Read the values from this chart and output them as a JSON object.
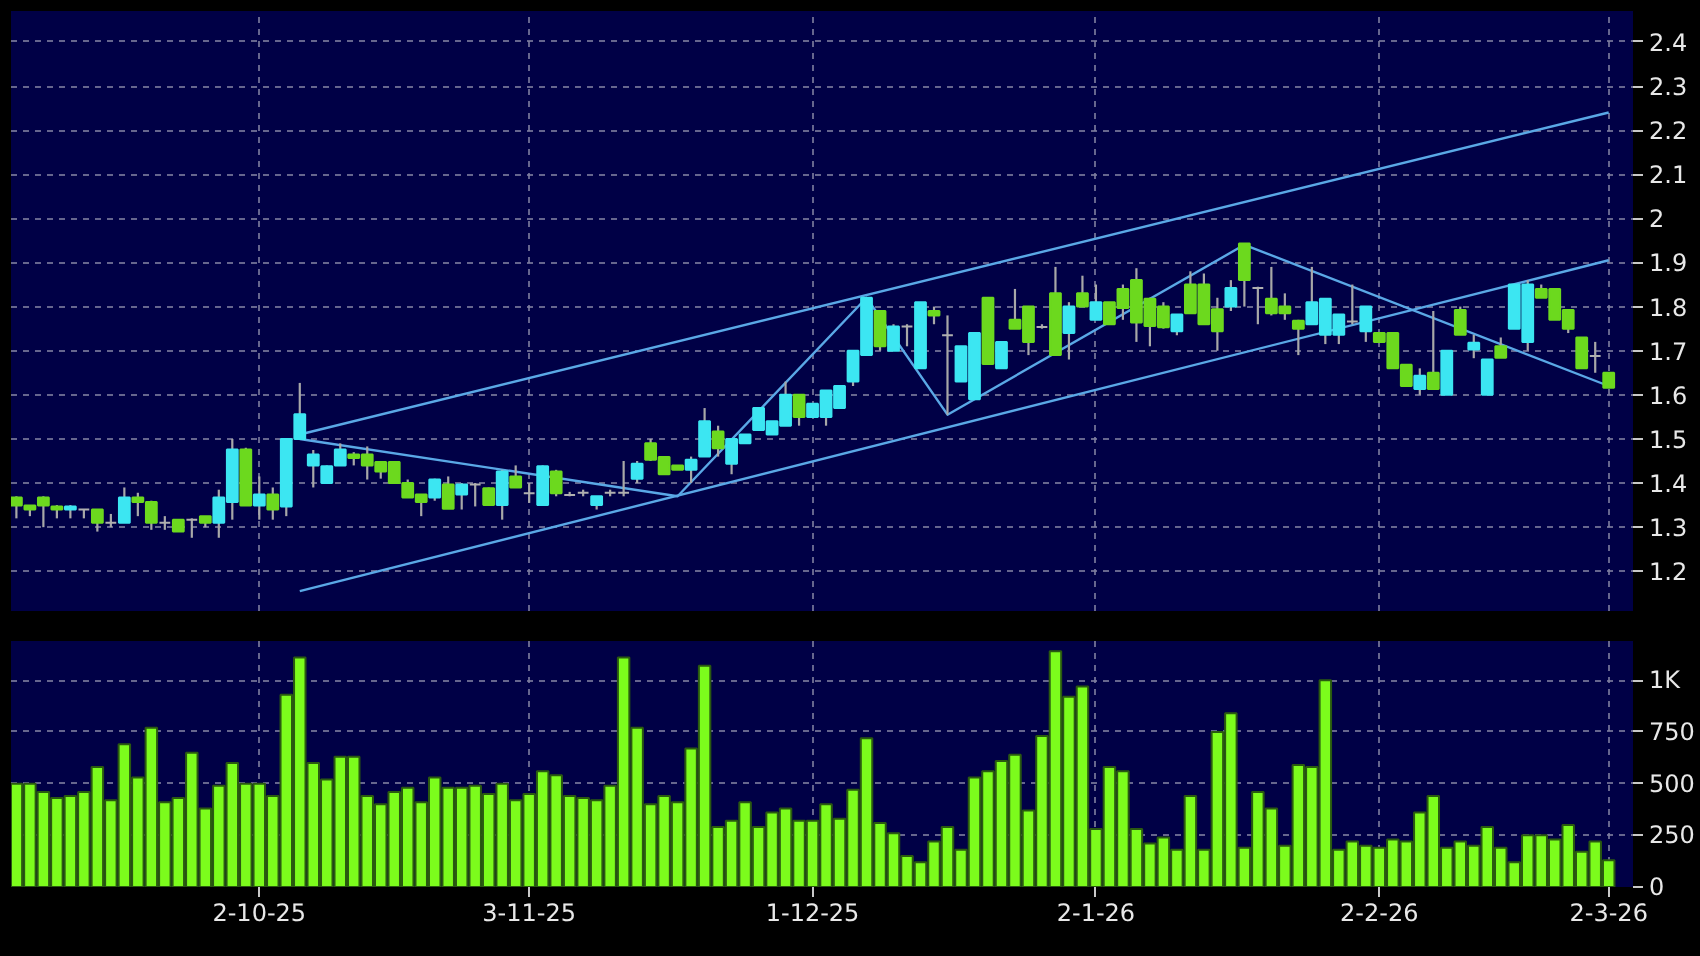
{
  "chart_data": [
    {
      "type": "candlestick",
      "tick_labels": "y",
      "grid": true,
      "ylim": [
        1.11,
        2.47
      ],
      "yticks": [
        1.2,
        1.3,
        1.4,
        1.5,
        1.6,
        1.7,
        1.8,
        1.9,
        2,
        2.1,
        2.2,
        2.3,
        2.4
      ],
      "categories": [
        null,
        null,
        null,
        null,
        null,
        null,
        null,
        null,
        null,
        null,
        null,
        null,
        null,
        null,
        null,
        null,
        null,
        null,
        null,
        null,
        null,
        null,
        null,
        null,
        null,
        null,
        null,
        null,
        null,
        null,
        null,
        null,
        null,
        null,
        null,
        null,
        null,
        null,
        null,
        null,
        null,
        null,
        null,
        null,
        null,
        null,
        null,
        null,
        null,
        null,
        null,
        null,
        null,
        null,
        null,
        null,
        null,
        null,
        null,
        null,
        null,
        null,
        null,
        null,
        null,
        null,
        null,
        null,
        null,
        null,
        null,
        null,
        null,
        null,
        null,
        null,
        null,
        null,
        null,
        null,
        null,
        null,
        null,
        null,
        null,
        null,
        null,
        null,
        null,
        null,
        null,
        null,
        null,
        null,
        null,
        null,
        null,
        null,
        null,
        null,
        null,
        null,
        null,
        null,
        null,
        null,
        null,
        null,
        null,
        null,
        null,
        null,
        null,
        null,
        null,
        null,
        null,
        null,
        null
      ],
      "ohlc": [
        [
          1.367,
          1.37,
          1.32,
          1.349
        ],
        [
          1.349,
          1.35,
          1.325,
          1.34
        ],
        [
          1.367,
          1.37,
          1.3,
          1.349
        ],
        [
          1.347,
          1.35,
          1.32,
          1.34
        ],
        [
          1.34,
          1.35,
          1.32,
          1.347
        ],
        [
          1.34,
          1.34,
          1.32,
          1.34
        ],
        [
          1.34,
          1.34,
          1.29,
          1.31
        ],
        [
          1.31,
          1.33,
          1.3,
          1.31
        ],
        [
          1.31,
          1.39,
          1.31,
          1.367
        ],
        [
          1.367,
          1.378,
          1.325,
          1.357
        ],
        [
          1.357,
          1.36,
          1.294,
          1.31
        ],
        [
          1.31,
          1.325,
          1.294,
          1.31
        ],
        [
          1.317,
          1.317,
          1.29,
          1.29
        ],
        [
          1.317,
          1.32,
          1.276,
          1.317
        ],
        [
          1.325,
          1.325,
          1.3,
          1.31
        ],
        [
          1.31,
          1.385,
          1.276,
          1.367
        ],
        [
          1.357,
          1.5,
          1.317,
          1.476
        ],
        [
          1.476,
          1.48,
          1.349,
          1.349
        ],
        [
          1.349,
          1.415,
          1.317,
          1.374
        ],
        [
          1.374,
          1.39,
          1.317,
          1.34
        ],
        [
          1.347,
          1.5,
          1.325,
          1.5
        ],
        [
          1.5,
          1.627,
          1.5,
          1.556
        ],
        [
          1.44,
          1.475,
          1.39,
          1.465
        ],
        [
          1.4,
          1.44,
          1.4,
          1.438
        ],
        [
          1.44,
          1.49,
          1.44,
          1.476
        ],
        [
          1.465,
          1.47,
          1.44,
          1.457
        ],
        [
          1.465,
          1.483,
          1.408,
          1.44
        ],
        [
          1.448,
          1.45,
          1.41,
          1.426
        ],
        [
          1.448,
          1.45,
          1.4,
          1.4
        ],
        [
          1.4,
          1.408,
          1.367,
          1.367
        ],
        [
          1.374,
          1.374,
          1.325,
          1.357
        ],
        [
          1.367,
          1.41,
          1.36,
          1.408
        ],
        [
          1.397,
          1.415,
          1.342,
          1.342
        ],
        [
          1.374,
          1.4,
          1.34,
          1.397
        ],
        [
          1.397,
          1.4,
          1.347,
          1.397
        ],
        [
          1.388,
          1.39,
          1.35,
          1.35
        ],
        [
          1.35,
          1.43,
          1.317,
          1.426
        ],
        [
          1.415,
          1.44,
          1.39,
          1.39
        ],
        [
          1.377,
          1.4,
          1.355,
          1.377
        ],
        [
          1.35,
          1.44,
          1.35,
          1.438
        ],
        [
          1.426,
          1.43,
          1.37,
          1.377
        ],
        [
          1.373,
          1.38,
          1.37,
          1.373
        ],
        [
          1.378,
          1.385,
          1.37,
          1.378
        ],
        [
          1.35,
          1.37,
          1.34,
          1.37
        ],
        [
          1.378,
          1.385,
          1.37,
          1.378
        ],
        [
          1.378,
          1.45,
          1.37,
          1.378
        ],
        [
          1.41,
          1.45,
          1.4,
          1.444
        ],
        [
          1.49,
          1.5,
          1.45,
          1.453
        ],
        [
          1.459,
          1.46,
          1.42,
          1.42
        ],
        [
          1.44,
          1.44,
          1.43,
          1.43
        ],
        [
          1.43,
          1.46,
          1.4,
          1.453
        ],
        [
          1.46,
          1.57,
          1.46,
          1.54
        ],
        [
          1.517,
          1.53,
          1.46,
          1.479
        ],
        [
          1.444,
          1.5,
          1.42,
          1.5
        ],
        [
          1.49,
          1.51,
          1.49,
          1.51
        ],
        [
          1.52,
          1.57,
          1.52,
          1.57
        ],
        [
          1.51,
          1.54,
          1.51,
          1.54
        ],
        [
          1.53,
          1.63,
          1.53,
          1.6
        ],
        [
          1.6,
          1.6,
          1.53,
          1.55
        ],
        [
          1.55,
          1.58,
          1.55,
          1.58
        ],
        [
          1.55,
          1.61,
          1.53,
          1.61
        ],
        [
          1.57,
          1.62,
          1.57,
          1.62
        ],
        [
          1.63,
          1.7,
          1.62,
          1.7
        ],
        [
          1.69,
          1.82,
          1.69,
          1.82
        ],
        [
          1.79,
          1.79,
          1.7,
          1.71
        ],
        [
          1.7,
          1.76,
          1.7,
          1.755
        ],
        [
          1.755,
          1.76,
          1.71,
          1.755
        ],
        [
          1.66,
          1.81,
          1.66,
          1.81
        ],
        [
          1.79,
          1.8,
          1.76,
          1.78
        ],
        [
          1.735,
          1.78,
          1.555,
          1.735
        ],
        [
          1.63,
          1.71,
          1.63,
          1.71
        ],
        [
          1.59,
          1.74,
          1.59,
          1.74
        ],
        [
          1.82,
          1.82,
          1.67,
          1.67
        ],
        [
          1.66,
          1.72,
          1.66,
          1.72
        ],
        [
          1.77,
          1.84,
          1.75,
          1.75
        ],
        [
          1.8,
          1.8,
          1.69,
          1.72
        ],
        [
          1.754,
          1.76,
          1.75,
          1.754
        ],
        [
          1.83,
          1.89,
          1.69,
          1.69
        ],
        [
          1.74,
          1.81,
          1.68,
          1.8
        ],
        [
          1.83,
          1.87,
          1.8,
          1.8
        ],
        [
          1.77,
          1.85,
          1.77,
          1.81
        ],
        [
          1.81,
          1.81,
          1.76,
          1.76
        ],
        [
          1.84,
          1.85,
          1.77,
          1.797
        ],
        [
          1.86,
          1.887,
          1.72,
          1.764
        ],
        [
          1.818,
          1.82,
          1.71,
          1.756
        ],
        [
          1.8,
          1.81,
          1.75,
          1.753
        ],
        [
          1.744,
          1.782,
          1.735,
          1.782
        ],
        [
          1.85,
          1.88,
          1.785,
          1.785
        ],
        [
          1.85,
          1.875,
          1.76,
          1.76
        ],
        [
          1.794,
          1.82,
          1.7,
          1.744
        ],
        [
          1.8,
          1.86,
          1.79,
          1.842
        ],
        [
          1.943,
          1.943,
          1.8,
          1.86
        ],
        [
          1.842,
          1.845,
          1.76,
          1.842
        ],
        [
          1.818,
          1.89,
          1.78,
          1.785
        ],
        [
          1.8,
          1.83,
          1.77,
          1.785
        ],
        [
          1.768,
          1.77,
          1.69,
          1.75
        ],
        [
          1.76,
          1.89,
          1.76,
          1.81
        ],
        [
          1.736,
          1.818,
          1.715,
          1.818
        ],
        [
          1.736,
          1.782,
          1.715,
          1.782
        ],
        [
          1.766,
          1.85,
          1.76,
          1.766
        ],
        [
          1.744,
          1.8,
          1.72,
          1.8
        ],
        [
          1.74,
          1.74,
          1.72,
          1.72
        ],
        [
          1.74,
          1.74,
          1.66,
          1.66
        ],
        [
          1.668,
          1.668,
          1.62,
          1.62
        ],
        [
          1.613,
          1.66,
          1.6,
          1.643
        ],
        [
          1.65,
          1.79,
          1.613,
          1.613
        ],
        [
          1.6,
          1.7,
          1.6,
          1.7
        ],
        [
          1.792,
          1.8,
          1.736,
          1.736
        ],
        [
          1.703,
          1.736,
          1.683,
          1.718
        ],
        [
          1.6,
          1.68,
          1.6,
          1.68
        ],
        [
          1.71,
          1.73,
          1.684,
          1.684
        ],
        [
          1.75,
          1.85,
          1.75,
          1.85
        ],
        [
          1.72,
          1.86,
          1.7,
          1.85
        ],
        [
          1.84,
          1.85,
          1.82,
          1.82
        ],
        [
          1.84,
          1.84,
          1.77,
          1.77
        ],
        [
          1.792,
          1.792,
          1.74,
          1.75
        ],
        [
          1.73,
          1.73,
          1.66,
          1.66
        ],
        [
          1.688,
          1.72,
          1.65,
          1.688
        ],
        [
          1.65,
          1.65,
          1.616,
          1.616
        ]
      ],
      "colors": [
        "#6cd91e",
        "#6cd91e",
        "#6cd91e",
        "#6cd91e",
        "#3ce6f2",
        "#b0b0b0",
        "#6cd91e",
        "#b0b0b0",
        "#3ce6f2",
        "#6cd91e",
        "#6cd91e",
        "#b0b0b0",
        "#6cd91e",
        "#b0b0b0",
        "#6cd91e",
        "#3ce6f2",
        "#3ce6f2",
        "#6cd91e",
        "#3ce6f2",
        "#6cd91e",
        "#3ce6f2",
        "#3ce6f2",
        "#3ce6f2",
        "#3ce6f2",
        "#3ce6f2",
        "#6cd91e",
        "#6cd91e",
        "#6cd91e",
        "#6cd91e",
        "#6cd91e",
        "#6cd91e",
        "#3ce6f2",
        "#6cd91e",
        "#3ce6f2",
        "#b0b0b0",
        "#6cd91e",
        "#3ce6f2",
        "#6cd91e",
        "#b0b0b0",
        "#3ce6f2",
        "#6cd91e",
        "#b0b0b0",
        "#b0b0b0",
        "#3ce6f2",
        "#b0b0b0",
        "#b0b0b0",
        "#3ce6f2",
        "#6cd91e",
        "#6cd91e",
        "#6cd91e",
        "#3ce6f2",
        "#3ce6f2",
        "#6cd91e",
        "#3ce6f2",
        "#3ce6f2",
        "#3ce6f2",
        "#3ce6f2",
        "#3ce6f2",
        "#6cd91e",
        "#3ce6f2",
        "#3ce6f2",
        "#3ce6f2",
        "#3ce6f2",
        "#3ce6f2",
        "#6cd91e",
        "#3ce6f2",
        "#b0b0b0",
        "#3ce6f2",
        "#6cd91e",
        "#b0b0b0",
        "#3ce6f2",
        "#3ce6f2",
        "#6cd91e",
        "#3ce6f2",
        "#6cd91e",
        "#6cd91e",
        "#b0b0b0",
        "#6cd91e",
        "#3ce6f2",
        "#6cd91e",
        "#3ce6f2",
        "#6cd91e",
        "#6cd91e",
        "#6cd91e",
        "#6cd91e",
        "#6cd91e",
        "#3ce6f2",
        "#6cd91e",
        "#6cd91e",
        "#6cd91e",
        "#3ce6f2",
        "#6cd91e",
        "#b0b0b0",
        "#6cd91e",
        "#6cd91e",
        "#6cd91e",
        "#3ce6f2",
        "#3ce6f2",
        "#3ce6f2",
        "#b0b0b0",
        "#3ce6f2",
        "#6cd91e",
        "#6cd91e",
        "#6cd91e",
        "#3ce6f2",
        "#6cd91e",
        "#3ce6f2",
        "#6cd91e",
        "#3ce6f2",
        "#3ce6f2",
        "#6cd91e",
        "#3ce6f2",
        "#3ce6f2",
        "#6cd91e",
        "#6cd91e",
        "#6cd91e",
        "#6cd91e",
        "#b0b0b0",
        "#6cd91e"
      ],
      "series": [
        {
          "type": "line",
          "color": "#5aa8e6",
          "values": [
            null,
            null,
            null,
            null,
            null,
            null,
            null,
            null,
            null,
            null,
            null,
            null,
            null,
            null,
            null,
            null,
            null,
            null,
            null,
            null,
            null,
            1.51,
            null,
            null,
            null,
            null,
            null,
            null,
            null,
            null,
            null,
            null,
            null,
            null,
            null,
            null,
            null,
            null,
            null,
            null,
            null,
            null,
            null,
            null,
            null,
            null,
            null,
            null,
            null,
            null,
            null,
            null,
            null,
            null,
            null,
            null,
            null,
            null,
            null,
            null,
            null,
            null,
            null,
            null,
            null,
            null,
            null,
            null,
            null,
            null,
            null,
            null,
            null,
            null,
            null,
            null,
            null,
            null,
            null,
            null,
            null,
            null,
            null,
            null,
            null,
            null,
            null,
            null,
            null,
            null,
            null,
            null,
            null,
            null,
            null,
            null,
            null,
            null,
            null,
            null,
            null,
            null,
            null,
            null,
            null,
            null,
            null,
            null,
            null,
            null,
            null,
            null,
            null,
            null,
            null,
            null,
            null,
            null,
            2.24
          ]
        },
        {
          "type": "line",
          "color": "#5aa8e6",
          "values": [
            null,
            null,
            null,
            null,
            null,
            null,
            null,
            null,
            null,
            null,
            null,
            null,
            null,
            null,
            null,
            null,
            null,
            null,
            null,
            null,
            null,
            1.155,
            null,
            null,
            null,
            null,
            null,
            null,
            null,
            null,
            null,
            null,
            null,
            null,
            null,
            null,
            null,
            null,
            null,
            null,
            null,
            null,
            null,
            null,
            null,
            null,
            null,
            null,
            null,
            null,
            null,
            null,
            null,
            null,
            null,
            null,
            null,
            null,
            null,
            null,
            null,
            null,
            null,
            null,
            null,
            null,
            null,
            null,
            null,
            null,
            null,
            null,
            null,
            null,
            null,
            null,
            null,
            null,
            null,
            null,
            null,
            null,
            null,
            null,
            null,
            null,
            null,
            null,
            null,
            null,
            null,
            null,
            null,
            null,
            null,
            null,
            null,
            null,
            null,
            null,
            null,
            null,
            null,
            null,
            null,
            null,
            null,
            null,
            null,
            null,
            null,
            null,
            null,
            null,
            null,
            null,
            null,
            null,
            1.905
          ]
        },
        {
          "type": "line",
          "color": "#5aa8e6",
          "values": [
            null,
            null,
            null,
            null,
            null,
            null,
            null,
            null,
            null,
            null,
            null,
            null,
            null,
            null,
            null,
            null,
            null,
            null,
            null,
            null,
            null,
            1.5,
            null,
            null,
            null,
            null,
            null,
            null,
            null,
            null,
            null,
            null,
            null,
            null,
            null,
            null,
            null,
            null,
            null,
            null,
            null,
            null,
            null,
            null,
            null,
            null,
            null,
            null,
            null,
            1.37,
            null,
            null,
            null,
            null,
            null,
            null,
            null,
            null,
            null,
            null,
            null,
            null,
            null,
            1.82,
            null,
            null,
            null,
            null,
            null,
            1.555,
            null,
            null,
            null,
            null,
            null,
            null,
            null,
            null,
            null,
            null,
            null,
            null,
            null,
            null,
            null,
            null,
            null,
            null,
            null,
            null,
            null,
            1.94,
            null,
            null,
            null,
            null,
            null,
            null,
            null,
            null,
            null,
            null,
            null,
            null,
            null,
            null,
            null,
            null,
            null,
            null,
            null,
            null,
            null,
            null,
            null,
            null,
            null,
            null,
            1.62
          ]
        }
      ]
    },
    {
      "type": "bar",
      "grid": true,
      "color": "#7cfc1c",
      "ylim": [
        0,
        1190
      ],
      "yticks": [
        0,
        250,
        500,
        750,
        {
          "value": 1000,
          "label": "1K"
        }
      ],
      "categories": [
        null,
        null,
        null,
        null,
        null,
        null,
        null,
        null,
        null,
        null,
        null,
        null,
        null,
        null,
        null,
        null,
        null,
        null,
        "2-10-25",
        null,
        null,
        null,
        null,
        null,
        null,
        null,
        null,
        null,
        null,
        null,
        null,
        null,
        null,
        null,
        null,
        null,
        null,
        null,
        "3-11-25",
        null,
        null,
        null,
        null,
        null,
        null,
        null,
        null,
        null,
        null,
        null,
        null,
        null,
        null,
        null,
        null,
        null,
        null,
        null,
        null,
        "1-12-25",
        null,
        null,
        null,
        null,
        null,
        null,
        null,
        null,
        null,
        null,
        null,
        null,
        null,
        null,
        null,
        null,
        null,
        null,
        null,
        null,
        "2-1-26",
        null,
        null,
        null,
        null,
        null,
        null,
        null,
        null,
        null,
        null,
        null,
        null,
        null,
        null,
        null,
        null,
        null,
        null,
        null,
        null,
        "2-2-26",
        null,
        null,
        null,
        null,
        null,
        null,
        null,
        null,
        null,
        null,
        null,
        null,
        null,
        null,
        null,
        null,
        "2-3-26"
      ],
      "values": [
        500,
        500,
        460,
        430,
        440,
        460,
        580,
        420,
        690,
        530,
        770,
        410,
        430,
        650,
        380,
        490,
        600,
        500,
        500,
        440,
        930,
        1110,
        600,
        520,
        630,
        630,
        440,
        400,
        460,
        480,
        410,
        530,
        480,
        480,
        490,
        450,
        500,
        420,
        450,
        560,
        540,
        440,
        430,
        420,
        490,
        1110,
        770,
        400,
        440,
        410,
        670,
        1070,
        290,
        320,
        410,
        290,
        360,
        380,
        320,
        320,
        400,
        330,
        470,
        720,
        310,
        260,
        150,
        120,
        220,
        290,
        180,
        530,
        560,
        610,
        640,
        370,
        730,
        1140,
        920,
        970,
        280,
        580,
        560,
        280,
        210,
        240,
        180,
        440,
        180,
        750,
        840,
        190,
        460,
        380,
        200,
        590,
        580,
        1000,
        180,
        220,
        200,
        190,
        230,
        220,
        360,
        440,
        190,
        220,
        200,
        290,
        190,
        120,
        250,
        250,
        230,
        300,
        170,
        220,
        130
      ]
    }
  ]
}
